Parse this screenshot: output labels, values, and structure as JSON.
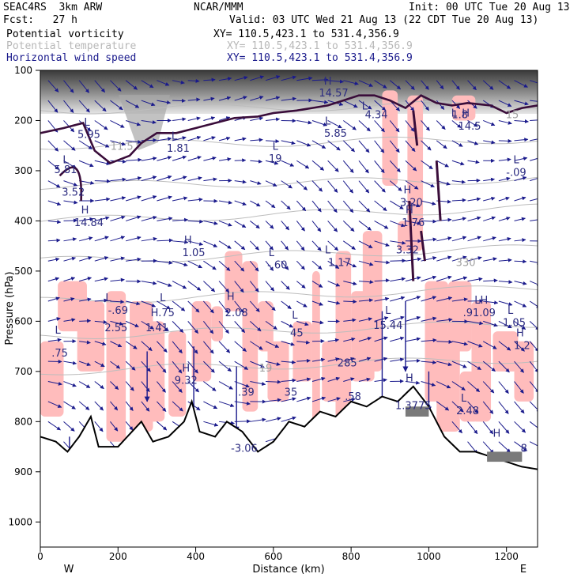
{
  "header": {
    "left1": "SEAC4RS  3km ARW",
    "center1": "NCAR/MMM",
    "right1": "Init: 00 UTC Tue 20 Aug 13",
    "left2": "Fcst:   27 h",
    "right2": "Valid: 03 UTC Wed 21 Aug 13 (22 CDT Tue 20 Aug 13)"
  },
  "legend": [
    {
      "name": "Potential vorticity",
      "xy": "XY= 110.5,423.1 to 531.4,356.9",
      "color": "#000000"
    },
    {
      "name": "Potential temperature",
      "xy": "XY= 110.5,423.1 to 531.4,356.9",
      "color": "#b8b8b8"
    },
    {
      "name": "Horizontal wind speed",
      "xy": "XY= 110.5,423.1 to 531.4,356.9",
      "color": "#1a1a8c"
    }
  ],
  "chart_data": {
    "type": "cross-section",
    "xlabel": "Distance (km)",
    "ylabel": "Pressure (hPa)",
    "xlim": [
      0,
      1280
    ],
    "ylim": [
      1050,
      100
    ],
    "x_ticks": [
      "0",
      "200",
      "400",
      "600",
      "800",
      "1000",
      "1200"
    ],
    "x_tick_values": [
      0,
      200,
      400,
      600,
      800,
      1000,
      1200
    ],
    "y_ticks": [
      "100",
      "200",
      "300",
      "400",
      "500",
      "600",
      "700",
      "800",
      "900",
      "1000"
    ],
    "y_tick_values": [
      100,
      200,
      300,
      400,
      500,
      600,
      700,
      800,
      900,
      1000
    ],
    "x_end_labels": {
      "left": "W",
      "right": "E"
    },
    "theta_labels": [
      {
        "text": "11.5",
        "x": 210,
        "p": 258
      },
      {
        "text": "330",
        "x": 1095,
        "p": 490
      },
      {
        "text": "19",
        "x": 580,
        "p": 700
      },
      {
        "text": "15",
        "x": 1215,
        "p": 195
      }
    ],
    "extrema_labels": [
      {
        "text": "L",
        "x": 120,
        "p": 210
      },
      {
        "text": "5.95",
        "x": 125,
        "p": 235
      },
      {
        "text": "L",
        "x": 345,
        "p": 238
      },
      {
        "text": "1.81",
        "x": 355,
        "p": 262
      },
      {
        "text": "H",
        "x": 740,
        "p": 128
      },
      {
        "text": "14.57",
        "x": 755,
        "p": 152
      },
      {
        "text": "L",
        "x": 835,
        "p": 178
      },
      {
        "text": "4.34",
        "x": 865,
        "p": 195
      },
      {
        "text": "L",
        "x": 1065,
        "p": 192
      },
      {
        "text": "1.8",
        "x": 1080,
        "p": 195
      },
      {
        "text": "H",
        "x": 1095,
        "p": 192
      },
      {
        "text": "14.5",
        "x": 1105,
        "p": 218
      },
      {
        "text": "L",
        "x": 740,
        "p": 208
      },
      {
        "text": "5.85",
        "x": 760,
        "p": 232
      },
      {
        "text": "L",
        "x": 605,
        "p": 258
      },
      {
        "text": "19",
        "x": 605,
        "p": 283
      },
      {
        "text": "L",
        "x": 65,
        "p": 285
      },
      {
        "text": "5.81",
        "x": 65,
        "p": 305
      },
      {
        "text": "3.52",
        "x": 85,
        "p": 350
      },
      {
        "text": "H",
        "x": 115,
        "p": 385
      },
      {
        "text": "14.84",
        "x": 125,
        "p": 410
      },
      {
        "text": "H",
        "x": 945,
        "p": 345
      },
      {
        "text": "3.20",
        "x": 955,
        "p": 370
      },
      {
        "text": "H",
        "x": 950,
        "p": 385
      },
      {
        "text": "1.76",
        "x": 960,
        "p": 410
      },
      {
        "text": "L",
        "x": 1225,
        "p": 285
      },
      {
        "text": "-.09",
        "x": 1225,
        "p": 310
      },
      {
        "text": "H",
        "x": 380,
        "p": 445
      },
      {
        "text": "1.05",
        "x": 395,
        "p": 470
      },
      {
        "text": "L",
        "x": 595,
        "p": 470
      },
      {
        "text": "-.60",
        "x": 610,
        "p": 495
      },
      {
        "text": "L",
        "x": 740,
        "p": 465
      },
      {
        "text": "1.17",
        "x": 770,
        "p": 490
      },
      {
        "text": "3.32",
        "x": 945,
        "p": 465
      },
      {
        "text": "L",
        "x": 175,
        "p": 560
      },
      {
        "text": "-.69",
        "x": 200,
        "p": 585
      },
      {
        "text": "2.55",
        "x": 195,
        "p": 620
      },
      {
        "text": "L",
        "x": 315,
        "p": 560
      },
      {
        "text": "H.75",
        "x": 315,
        "p": 590
      },
      {
        "text": "1.41",
        "x": 300,
        "p": 620
      },
      {
        "text": "H",
        "x": 490,
        "p": 558
      },
      {
        "text": "2.08",
        "x": 505,
        "p": 590
      },
      {
        "text": "L",
        "x": 655,
        "p": 595
      },
      {
        "text": "45",
        "x": 660,
        "p": 630
      },
      {
        "text": "L",
        "x": 895,
        "p": 585
      },
      {
        "text": "15.44",
        "x": 895,
        "p": 615
      },
      {
        "text": "LH",
        "x": 1135,
        "p": 565
      },
      {
        "text": ".91.09",
        "x": 1130,
        "p": 590
      },
      {
        "text": "L",
        "x": 1210,
        "p": 585
      },
      {
        "text": "1.05",
        "x": 1220,
        "p": 610
      },
      {
        "text": "H",
        "x": 1235,
        "p": 630
      },
      {
        "text": "1.2",
        "x": 1240,
        "p": 655
      },
      {
        "text": "L",
        "x": 45,
        "p": 625
      },
      {
        "text": ".75",
        "x": 50,
        "p": 670
      },
      {
        "text": "285",
        "x": 790,
        "p": 690
      },
      {
        "text": "H",
        "x": 375,
        "p": 700
      },
      {
        "text": "9.32",
        "x": 375,
        "p": 725
      },
      {
        "text": ".39",
        "x": 530,
        "p": 748
      },
      {
        "text": "35",
        "x": 645,
        "p": 748
      },
      {
        "text": ".58",
        "x": 805,
        "p": 757
      },
      {
        "text": "H",
        "x": 950,
        "p": 720
      },
      {
        "text": "1.3775",
        "x": 960,
        "p": 775
      },
      {
        "text": "L",
        "x": 1090,
        "p": 760
      },
      {
        "text": "2.48",
        "x": 1100,
        "p": 785
      },
      {
        "text": "-3.06",
        "x": 525,
        "p": 860
      },
      {
        "text": "H",
        "x": 1175,
        "p": 830
      },
      {
        "text": "8",
        "x": 1245,
        "p": 860
      }
    ]
  },
  "colors": {
    "pv_line": "#3a0d3a",
    "theta_line": "#bdbdbd",
    "wind_arrow": "#1a1a8c",
    "shading_pink": "#ffbcbc",
    "shading_gray": "#7a7a7a"
  }
}
